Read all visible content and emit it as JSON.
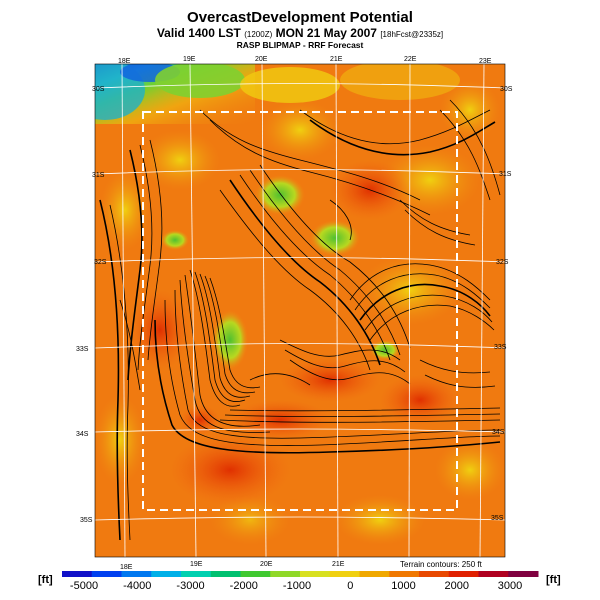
{
  "title": "OvercastDevelopment Potential",
  "subtitle_main": "Valid 1400 LST",
  "subtitle_small1": "(1200Z)",
  "subtitle_date": "MON 21 May 2007",
  "subtitle_small2": "[18hFcst@2335z]",
  "source_line": "RASP BLIPMAP - RRF Forecast",
  "terrain_note": "Terrain contours: 250 ft",
  "units": {
    "left": "[ft]",
    "right": "[ft]"
  },
  "lon_labels_top": [
    "18E",
    "19E",
    "20E",
    "21E",
    "22E",
    "23E"
  ],
  "lon_labels_bottom": [
    "18E",
    "19E",
    "20E",
    "21E"
  ],
  "lat_labels_left": [
    "30S",
    "31S",
    "32S",
    "33S",
    "34S",
    "35S"
  ],
  "lat_labels_right": [
    "30S",
    "31S",
    "32S",
    "33S",
    "34S",
    "35S"
  ],
  "colorbar": {
    "ticks": [
      "-5000",
      "-4000",
      "-3000",
      "-2000",
      "-1000",
      "0",
      "1000",
      "2000",
      "3000"
    ],
    "colors": [
      "#1010c8",
      "#0040f0",
      "#0078f0",
      "#00b0e8",
      "#00d0b0",
      "#00c070",
      "#40c830",
      "#90d828",
      "#d8e020",
      "#f0d010",
      "#f0a800",
      "#f07800",
      "#e84800",
      "#e02000",
      "#b00020",
      "#800040"
    ]
  },
  "colors": {
    "ocean_warm": "#f07a10",
    "land_warm": "#f06a10",
    "cold_green": "#7ad030",
    "cyan": "#20c0d0",
    "blue": "#1030d0"
  }
}
